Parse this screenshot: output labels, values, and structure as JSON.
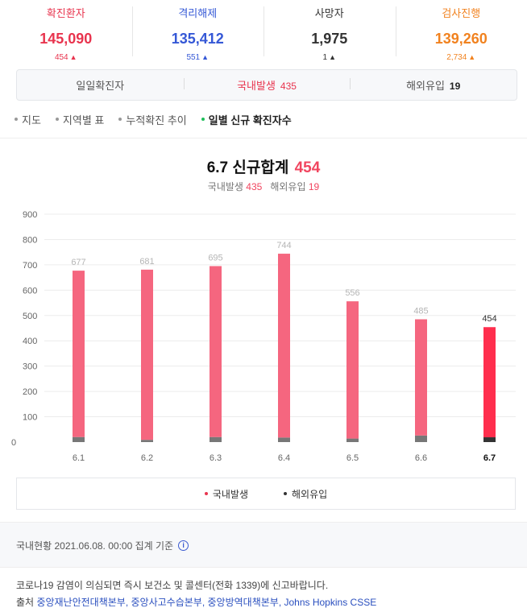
{
  "stats": [
    {
      "label": "확진환자",
      "value": "145,090",
      "change": "454",
      "color": "#e8344e"
    },
    {
      "label": "격리해제",
      "value": "135,412",
      "change": "551",
      "color": "#3558d6"
    },
    {
      "label": "사망자",
      "value": "1,975",
      "change": "1",
      "color": "#333333"
    },
    {
      "label": "검사진행",
      "value": "139,260",
      "change": "2,734",
      "color": "#f1821f"
    }
  ],
  "tabs": [
    {
      "label": "일일확진자",
      "value": ""
    },
    {
      "label": "국내발생",
      "value": "435"
    },
    {
      "label": "해외유입",
      "value": "19"
    }
  ],
  "subnav": [
    "지도",
    "지역별 표",
    "누적확진 추이",
    "일별 신규 확진자수"
  ],
  "heading": {
    "date": "6.7",
    "label": "신규합계",
    "total": "454",
    "domestic_label": "국내발생",
    "domestic": "435",
    "overseas_label": "해외유입",
    "overseas": "19"
  },
  "chart_data": {
    "type": "bar",
    "stacked": true,
    "categories": [
      "6.1",
      "6.2",
      "6.3",
      "6.4",
      "6.5",
      "6.6",
      "6.7"
    ],
    "totals": [
      677,
      681,
      695,
      744,
      556,
      485,
      454
    ],
    "series": [
      {
        "name": "국내발생",
        "values": [
          657,
          672,
          675,
          726,
          542,
          459,
          435
        ],
        "color": "#f5667f",
        "highlight_color": "#ff2e4d"
      },
      {
        "name": "해외유입",
        "values": [
          20,
          9,
          20,
          18,
          14,
          26,
          19
        ],
        "color": "#777777",
        "highlight_color": "#333333"
      }
    ],
    "highlight_index": 6,
    "yticks": [
      "0",
      "100",
      "200",
      "300",
      "400",
      "500",
      "600",
      "700",
      "800",
      "900"
    ],
    "ylim": [
      0,
      900
    ],
    "grid": true,
    "legend": "bottom"
  },
  "legend": [
    {
      "label": "국내발생",
      "color": "#e8344e"
    },
    {
      "label": "해외유입",
      "color": "#333333"
    }
  ],
  "footer": {
    "status": "국내현황 2021.06.08. 00:00 집계 기준",
    "info_icon": "info-icon",
    "notice": "코로나19 감염이 의심되면 즉시 보건소 및 콜센터(전화 1339)에 신고바랍니다.",
    "source_prefix": "출처",
    "sources": "중앙재난안전대책본부, 중앙사고수습본부, 중앙방역대책본부, Johns Hopkins CSSE"
  }
}
